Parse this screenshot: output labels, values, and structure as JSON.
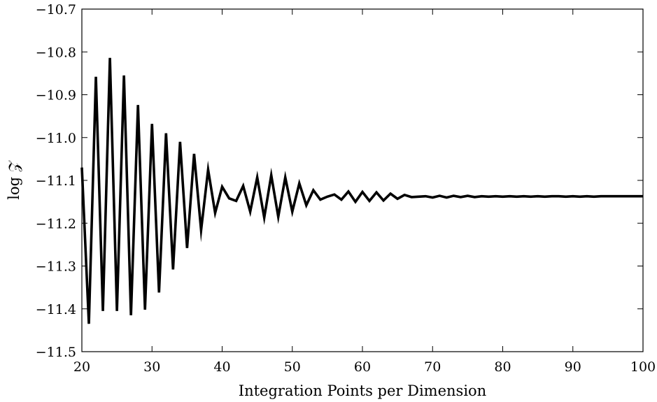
{
  "chart_data": {
    "type": "line",
    "xlabel": "Integration Points per Dimension",
    "ylabel": "log 𝒵",
    "xlim": [
      20,
      100
    ],
    "ylim": [
      -11.5,
      -10.7
    ],
    "xticks": [
      20,
      30,
      40,
      50,
      60,
      70,
      80,
      90,
      100
    ],
    "yticks": [
      -11.5,
      -11.4,
      -11.3,
      -11.2,
      -11.1,
      -11.0,
      -10.9,
      -10.8,
      -10.7
    ],
    "xtick_labels": [
      "20",
      "30",
      "40",
      "50",
      "60",
      "70",
      "80",
      "90",
      "100"
    ],
    "ytick_labels": [
      "−11.5",
      "−11.4",
      "−11.3",
      "−11.2",
      "−11.1",
      "−11.0",
      "−10.9",
      "−10.8",
      "−10.7"
    ],
    "grid": false,
    "series": [
      {
        "color": "#000000",
        "x": [
          20,
          21,
          22,
          23,
          24,
          25,
          26,
          27,
          28,
          29,
          30,
          31,
          32,
          33,
          34,
          35,
          36,
          37,
          38,
          39,
          40,
          41,
          42,
          43,
          44,
          45,
          46,
          47,
          48,
          49,
          50,
          51,
          52,
          53,
          54,
          55,
          56,
          57,
          58,
          59,
          60,
          61,
          62,
          63,
          64,
          65,
          66,
          67,
          68,
          69,
          70,
          71,
          72,
          73,
          74,
          75,
          76,
          77,
          78,
          79,
          80,
          81,
          82,
          83,
          84,
          85,
          86,
          87,
          88,
          89,
          90,
          91,
          92,
          93,
          94,
          95,
          96,
          97,
          98,
          99,
          100
        ],
        "values": [
          -11.07,
          -11.435,
          -10.858,
          -11.405,
          -10.814,
          -11.405,
          -10.855,
          -11.415,
          -10.924,
          -11.402,
          -10.968,
          -11.362,
          -10.99,
          -11.308,
          -11.01,
          -11.258,
          -11.038,
          -11.216,
          -11.075,
          -11.176,
          -11.115,
          -11.142,
          -11.148,
          -11.113,
          -11.173,
          -11.093,
          -11.187,
          -11.088,
          -11.185,
          -11.093,
          -11.173,
          -11.107,
          -11.158,
          -11.123,
          -11.145,
          -11.138,
          -11.133,
          -11.145,
          -11.126,
          -11.15,
          -11.127,
          -11.148,
          -11.128,
          -11.147,
          -11.131,
          -11.143,
          -11.134,
          -11.139,
          -11.138,
          -11.137,
          -11.14,
          -11.136,
          -11.14,
          -11.136,
          -11.139,
          -11.136,
          -11.139,
          -11.137,
          -11.138,
          -11.137,
          -11.138,
          -11.137,
          -11.138,
          -11.137,
          -11.138,
          -11.137,
          -11.138,
          -11.137,
          -11.137,
          -11.138,
          -11.137,
          -11.138,
          -11.137,
          -11.138,
          -11.137,
          -11.137,
          -11.137,
          -11.137,
          -11.137,
          -11.137,
          -11.137
        ]
      }
    ]
  }
}
